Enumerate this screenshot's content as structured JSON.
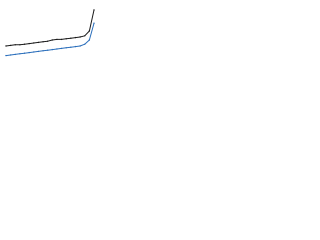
{
  "chart_data": {
    "type": "line",
    "categories": [
      null,
      null,
      null,
      null,
      null,
      null,
      null,
      null,
      null,
      null,
      null,
      null,
      null,
      null,
      null,
      null,
      null,
      null,
      null,
      null
    ],
    "series": [
      {
        "color": "#1a1a1a",
        "values": [
          30,
          31,
          32,
          32,
          33,
          34,
          35,
          36,
          37,
          38,
          40,
          41,
          41,
          42,
          43,
          44,
          45,
          47,
          55,
          90
        ]
      },
      {
        "color": "#2a6ebb",
        "values": [
          14,
          15,
          16,
          17,
          18,
          19,
          20,
          21,
          22,
          23,
          24,
          25,
          26,
          27,
          28,
          29,
          30,
          33,
          40,
          68
        ]
      }
    ],
    "ylim": [
      0,
      100
    ]
  }
}
